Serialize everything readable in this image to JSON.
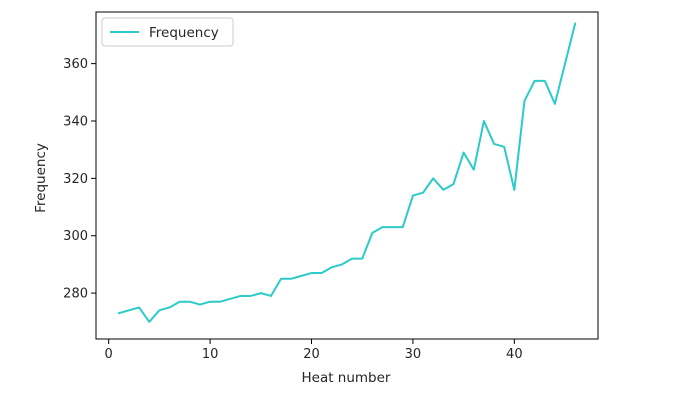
{
  "chart_data": {
    "type": "line",
    "title": "",
    "xlabel": "Heat number",
    "ylabel": "Frequency",
    "xlim": [
      -1.25,
      48.25
    ],
    "ylim": [
      264,
      378
    ],
    "xticks": [
      0,
      10,
      20,
      30,
      40
    ],
    "yticks": [
      280,
      300,
      320,
      340,
      360
    ],
    "grid": false,
    "legend": "top-left",
    "series": [
      {
        "name": "Frequency",
        "color": "#2ccbc9",
        "x": [
          1,
          2,
          3,
          4,
          5,
          6,
          7,
          8,
          9,
          10,
          11,
          12,
          13,
          14,
          15,
          16,
          17,
          18,
          19,
          20,
          21,
          22,
          23,
          24,
          25,
          26,
          27,
          28,
          29,
          30,
          31,
          32,
          33,
          34,
          35,
          36,
          37,
          38,
          39,
          40,
          41,
          42,
          43,
          44,
          45,
          46
        ],
        "y": [
          273,
          274,
          275,
          270,
          274,
          275,
          277,
          277,
          276,
          277,
          277,
          278,
          279,
          279,
          280,
          279,
          285,
          285,
          286,
          287,
          287,
          289,
          290,
          292,
          292,
          301,
          303,
          303,
          303,
          314,
          315,
          320,
          316,
          318,
          329,
          323,
          340,
          332,
          331,
          316,
          347,
          354,
          354,
          346,
          360,
          374
        ]
      }
    ]
  }
}
